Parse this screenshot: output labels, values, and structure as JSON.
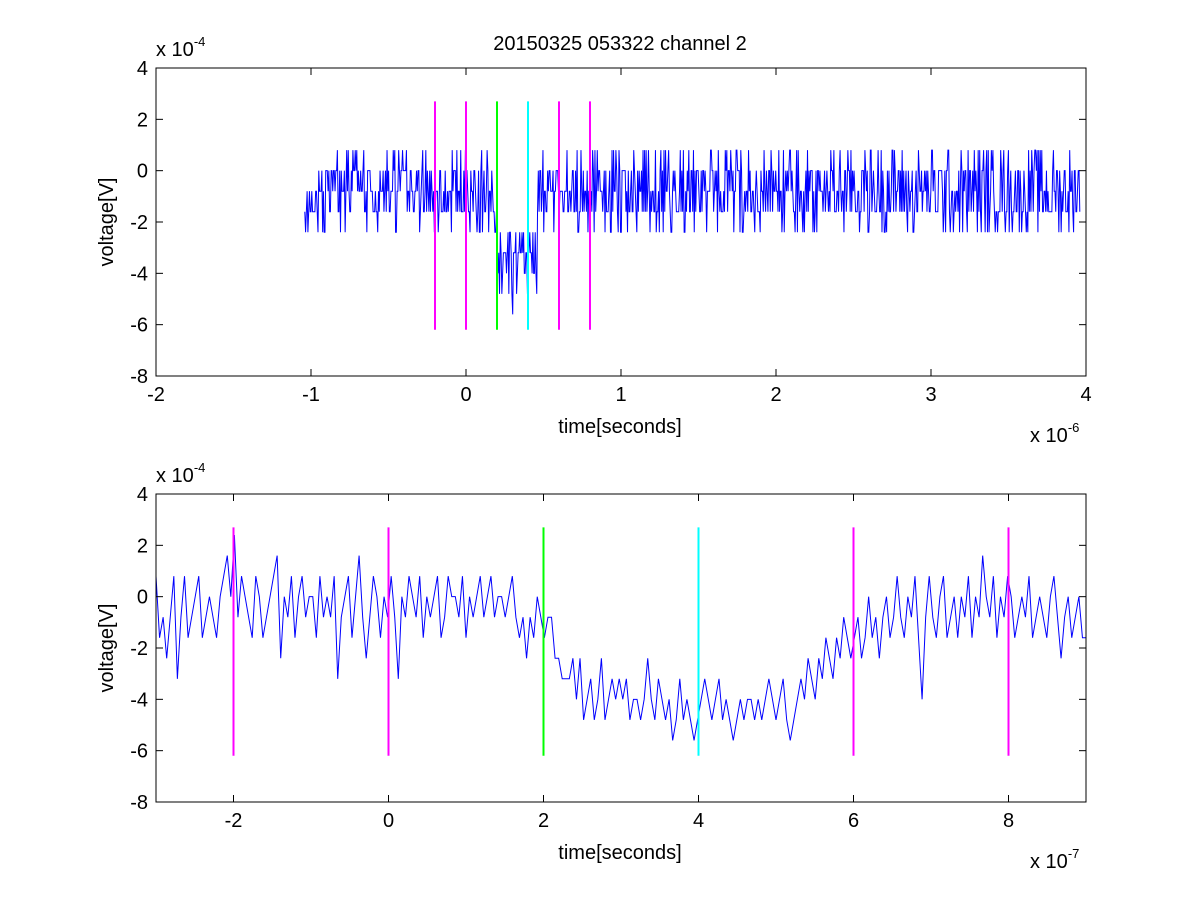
{
  "title": "20150325 053322 channel 2",
  "colors": {
    "trace": "#0000ff",
    "magenta_marker": "#ff00ff",
    "green_marker": "#00ff00",
    "cyan_marker": "#00ffff",
    "axes": "#000000",
    "background": "#ffffff"
  },
  "chart_data": [
    {
      "type": "line",
      "title": "20150325 053322 channel 2",
      "xlabel": "time[seconds]",
      "ylabel": "voltage[V]",
      "x_exponent_label": "x 10",
      "x_exponent": "-6",
      "y_exponent_label": "x 10",
      "y_exponent": "-4",
      "xlim": [
        -2,
        4
      ],
      "ylim": [
        -8,
        4
      ],
      "x_ticks": [
        -2,
        -1,
        0,
        1,
        2,
        3,
        4
      ],
      "x_tick_labels": [
        "-2",
        "-1",
        "0",
        "1",
        "2",
        "3",
        "4"
      ],
      "y_ticks": [
        -8,
        -6,
        -4,
        -2,
        0,
        2,
        4
      ],
      "y_tick_labels": [
        "-8",
        "-6",
        "-4",
        "-2",
        "0",
        "2",
        "4"
      ],
      "grid": false,
      "series": [
        {
          "color": "#0000ff",
          "x_range": [
            -1.04,
            3.96
          ],
          "dip": {
            "start": 0.2,
            "end": 0.46,
            "min": -5.6
          },
          "baseline": -0.8,
          "noise_amplitude": 1.5,
          "points": 1000
        }
      ],
      "markers": [
        {
          "x": -0.2,
          "color": "#ff00ff",
          "y_range": [
            -6.2,
            2.7
          ]
        },
        {
          "x": 0.0,
          "color": "#ff00ff",
          "y_range": [
            -6.2,
            2.7
          ]
        },
        {
          "x": 0.2,
          "color": "#00ff00",
          "y_range": [
            -6.2,
            2.7
          ]
        },
        {
          "x": 0.4,
          "color": "#00ffff",
          "y_range": [
            -6.2,
            2.7
          ]
        },
        {
          "x": 0.6,
          "color": "#ff00ff",
          "y_range": [
            -6.2,
            2.7
          ]
        },
        {
          "x": 0.8,
          "color": "#ff00ff",
          "y_range": [
            -6.2,
            2.7
          ]
        }
      ]
    },
    {
      "type": "line",
      "title": "",
      "xlabel": "time[seconds]",
      "ylabel": "voltage[V]",
      "x_exponent_label": "x 10",
      "x_exponent": "-7",
      "y_exponent_label": "x 10",
      "y_exponent": "-4",
      "xlim": [
        -3,
        9
      ],
      "ylim": [
        -8,
        4
      ],
      "x_ticks": [
        -2,
        0,
        2,
        4,
        6,
        8
      ],
      "x_tick_labels": [
        "-2",
        "0",
        "2",
        "4",
        "6",
        "8"
      ],
      "y_ticks": [
        -8,
        -6,
        -4,
        -2,
        0,
        2,
        4
      ],
      "y_tick_labels": [
        "-8",
        "-6",
        "-4",
        "-2",
        "0",
        "2",
        "4"
      ],
      "grid": false,
      "series": [
        {
          "color": "#0000ff",
          "x_range": [
            -3,
            9
          ],
          "values": [
            0.8,
            -1.6,
            -0.8,
            -2.4,
            -0.8,
            0.8,
            -3.2,
            -0.8,
            0.8,
            -1.6,
            -0.8,
            0.0,
            0.8,
            -1.6,
            -0.8,
            0.0,
            -0.8,
            -1.6,
            0.0,
            0.8,
            1.6,
            0.0,
            2.4,
            -0.8,
            0.8,
            0.0,
            -0.8,
            -1.6,
            0.8,
            0.0,
            -1.6,
            -0.8,
            0.0,
            0.8,
            1.6,
            -2.4,
            0.0,
            -0.8,
            0.8,
            -1.6,
            0.0,
            0.8,
            -0.8,
            0.0,
            0.0,
            -1.6,
            0.8,
            -0.8,
            0.0,
            -0.8,
            0.8,
            -3.2,
            -0.8,
            0.0,
            0.8,
            -1.6,
            0.0,
            1.6,
            -0.8,
            -2.4,
            -0.8,
            0.8,
            0.0,
            -1.6,
            0.0,
            -0.8,
            0.8,
            -0.8,
            -3.2,
            0.0,
            -0.8,
            0.8,
            0.0,
            -0.8,
            0.8,
            -1.6,
            0.0,
            -0.8,
            0.0,
            0.8,
            -1.6,
            -0.8,
            0.8,
            0.0,
            0.0,
            -0.8,
            0.8,
            -1.6,
            0.0,
            -0.8,
            0.0,
            0.8,
            -0.8,
            0.0,
            0.8,
            -0.8,
            0.0,
            0.0,
            -0.8,
            0.0,
            0.8,
            -0.8,
            -1.6,
            -0.8,
            -2.4,
            -0.8,
            -1.6,
            0.0,
            -0.8,
            -1.6,
            -0.8,
            -0.8,
            -2.4,
            -2.4,
            -3.2,
            -3.2,
            -3.2,
            -2.4,
            -4.0,
            -2.4,
            -4.8,
            -4.0,
            -3.2,
            -4.8,
            -4.0,
            -2.4,
            -4.8,
            -4.0,
            -3.2,
            -4.0,
            -3.2,
            -4.0,
            -3.2,
            -4.8,
            -4.0,
            -4.0,
            -4.8,
            -4.0,
            -2.4,
            -4.0,
            -4.8,
            -3.2,
            -4.0,
            -4.8,
            -4.0,
            -5.6,
            -4.8,
            -3.2,
            -4.8,
            -4.0,
            -4.8,
            -5.6,
            -4.8,
            -4.0,
            -3.2,
            -4.0,
            -4.8,
            -4.0,
            -3.2,
            -4.8,
            -4.0,
            -4.8,
            -5.6,
            -4.8,
            -4.0,
            -4.8,
            -4.0,
            -4.0,
            -4.8,
            -4.0,
            -4.8,
            -4.0,
            -3.2,
            -4.0,
            -4.8,
            -4.0,
            -3.2,
            -4.8,
            -5.6,
            -4.8,
            -4.0,
            -3.2,
            -4.0,
            -2.4,
            -3.2,
            -4.0,
            -2.4,
            -3.2,
            -1.6,
            -2.4,
            -3.2,
            -1.6,
            -2.4,
            -0.8,
            -1.6,
            -2.4,
            -1.6,
            -0.8,
            -2.4,
            -1.6,
            0.0,
            -1.6,
            -0.8,
            -2.4,
            -0.8,
            0.0,
            -1.6,
            -0.8,
            0.8,
            -0.8,
            -1.6,
            0.0,
            -0.8,
            0.8,
            -1.6,
            -4.0,
            -0.8,
            0.8,
            -0.8,
            -1.6,
            0.0,
            0.8,
            -1.6,
            -0.8,
            0.0,
            -1.6,
            0.0,
            -0.8,
            0.8,
            -1.6,
            0.0,
            -0.8,
            1.6,
            0.0,
            -0.8,
            0.8,
            -1.6,
            0.0,
            -0.8,
            0.8,
            0.0,
            -1.6,
            -0.8,
            0.0,
            -0.8,
            0.8,
            -1.6,
            -0.8,
            0.0,
            -0.8,
            -1.6,
            0.0,
            0.8,
            -0.8,
            -2.4,
            -0.8,
            0.0,
            -1.6,
            -0.8,
            0.0,
            -1.6,
            -1.6
          ]
        }
      ],
      "markers": [
        {
          "x": -2,
          "color": "#ff00ff",
          "y_range": [
            -6.2,
            2.7
          ]
        },
        {
          "x": 0,
          "color": "#ff00ff",
          "y_range": [
            -6.2,
            2.7
          ]
        },
        {
          "x": 2,
          "color": "#00ff00",
          "y_range": [
            -6.2,
            2.7
          ]
        },
        {
          "x": 4,
          "color": "#00ffff",
          "y_range": [
            -6.2,
            2.7
          ]
        },
        {
          "x": 6,
          "color": "#ff00ff",
          "y_range": [
            -6.2,
            2.7
          ]
        },
        {
          "x": 8,
          "color": "#ff00ff",
          "y_range": [
            -6.2,
            2.7
          ]
        }
      ]
    }
  ]
}
